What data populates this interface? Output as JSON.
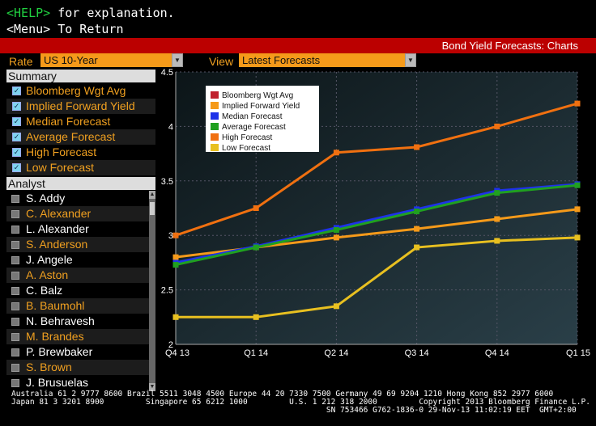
{
  "header": {
    "help_key": "<HELP>",
    "help_text": " for explanation.",
    "menu_line": "<Menu> To Return",
    "title": "Bond Yield Forecasts: Charts"
  },
  "controls": {
    "rate_label": "Rate",
    "rate_value": "US 10-Year",
    "view_label": "View",
    "view_value": "Latest Forecasts"
  },
  "summary": {
    "heading": "Summary",
    "items": [
      {
        "label": "Bloomberg Wgt Avg",
        "checked": true
      },
      {
        "label": "Implied Forward Yield",
        "checked": true
      },
      {
        "label": "Median Forecast",
        "checked": true
      },
      {
        "label": "Average Forecast",
        "checked": true
      },
      {
        "label": "High Forecast",
        "checked": true
      },
      {
        "label": "Low Forecast",
        "checked": true
      }
    ]
  },
  "analyst": {
    "heading": "Analyst",
    "items": [
      "S. Addy",
      "C. Alexander",
      "L. Alexander",
      "S. Anderson",
      "J. Angele",
      "A. Aston",
      "C. Balz",
      "B. Baumohl",
      "N. Behravesh",
      "M. Brandes",
      "P. Brewbaker",
      "S. Brown",
      "J. Brusuelas"
    ],
    "colors": {
      "white_text": "#ffffff",
      "orange_text": "#f0a020"
    }
  },
  "chart_data": {
    "type": "line",
    "categories": [
      "Q4 13",
      "Q1 14",
      "Q2 14",
      "Q3 14",
      "Q4 14",
      "Q1 15"
    ],
    "ylim": [
      2,
      4.5
    ],
    "yticks": [
      "4.5",
      "4",
      "3.5",
      "3",
      "2.5",
      "2"
    ],
    "legend_position": "top-left",
    "grid": true,
    "series": [
      {
        "name": "Bloomberg Wgt Avg",
        "color": "#c0202c",
        "values": [
          null,
          null,
          null,
          null,
          null,
          null
        ]
      },
      {
        "name": "Implied Forward Yield",
        "color": "#f59a1a",
        "values": [
          2.8,
          2.89,
          2.98,
          3.06,
          3.15,
          3.24
        ]
      },
      {
        "name": "Median Forecast",
        "color": "#1e32e8",
        "values": [
          2.75,
          2.9,
          3.07,
          3.24,
          3.41,
          3.47
        ]
      },
      {
        "name": "Average Forecast",
        "color": "#20a020",
        "values": [
          2.73,
          2.89,
          3.05,
          3.22,
          3.39,
          3.46
        ]
      },
      {
        "name": "High Forecast",
        "color": "#f07010",
        "values": [
          3.0,
          3.25,
          3.76,
          3.81,
          4.0,
          4.21
        ]
      },
      {
        "name": "Low Forecast",
        "color": "#e8c020",
        "values": [
          2.25,
          2.25,
          2.35,
          2.89,
          2.95,
          2.98
        ]
      }
    ]
  },
  "footer": {
    "line1": "Australia 61 2 9777 8600 Brazil 5511 3048 4500 Europe 44 20 7330 7500 Germany 49 69 9204 1210 Hong Kong 852 2977 6000",
    "line2": "Japan 81 3 3201 8900         Singapore 65 6212 1000         U.S. 1 212 318 2000         Copyright 2013 Bloomberg Finance L.P.",
    "line3": "                                                                    SN 753466 G762-1836-0 29-Nov-13 11:02:19 EET  GMT+2:00"
  }
}
